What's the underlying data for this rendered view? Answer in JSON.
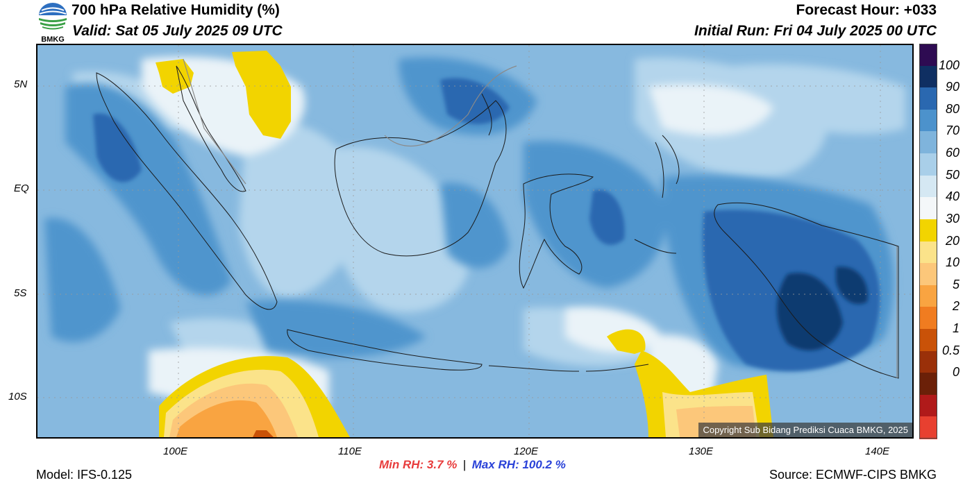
{
  "header": {
    "title": "700 hPa Relative Humidity (%)",
    "valid": "Valid: Sat 05 July 2025 09 UTC",
    "forecast_hour": "Forecast Hour: +033",
    "initial_run": "Initial Run: Fri 04 July 2025 00 UTC",
    "logo_text": "BMKG"
  },
  "axes": {
    "lat_ticks": [
      "5N",
      "EQ",
      "5S",
      "10S"
    ],
    "lon_ticks": [
      "100E",
      "110E",
      "120E",
      "130E",
      "140E"
    ]
  },
  "colorbar": {
    "labels": [
      "100",
      "90",
      "80",
      "70",
      "60",
      "50",
      "40",
      "30",
      "20",
      "10",
      "5",
      "2",
      "1",
      "0.5",
      "0"
    ],
    "colors": [
      "#2e0b52",
      "#0f2f62",
      "#2a68b0",
      "#4c92cc",
      "#7fb4dc",
      "#a9cfe9",
      "#d5e8f3",
      "#f4f7f9",
      "#f2d400",
      "#fbe38a",
      "#fcc77a",
      "#f9a441",
      "#f07c20",
      "#c95208",
      "#9a3009",
      "#6b2008",
      "#b01a1a",
      "#e84030"
    ]
  },
  "stats": {
    "min_rh": "Min RH:   3.7 %",
    "separator": "|",
    "max_rh": "Max RH: 100.2 %"
  },
  "footer": {
    "model": "Model: IFS-0.125",
    "source": "Source: ECMWF-CIPS BMKG",
    "copyright": "Copyright Sub Bidang Prediksi Cuaca BMKG, 2025"
  }
}
